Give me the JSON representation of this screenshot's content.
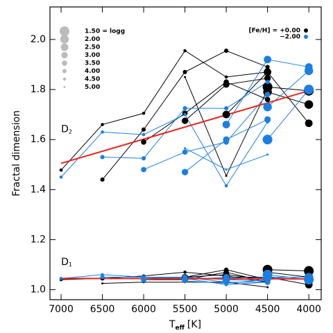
{
  "chart_data": {
    "type": "scatter",
    "x_label": [
      "T",
      "eff",
      "[K]"
    ],
    "y_label": "Fractal dimension",
    "xlim": [
      7135,
      3850
    ],
    "ylim": [
      0.96,
      2.13
    ],
    "xticks": [
      7000,
      6500,
      6000,
      5500,
      5000,
      4500,
      4000
    ],
    "yticks": [
      {
        "value": 1.0,
        "label": "1.0"
      },
      1.2,
      1.4,
      1.6,
      1.8,
      {
        "value": 2.0,
        "label": "2.0"
      }
    ],
    "annotations": [
      {
        "main": "D",
        "sub": "2",
        "x": 7000,
        "y": 1.64
      },
      {
        "main": "D",
        "sub": "1",
        "x": 7000,
        "y": 1.11
      }
    ],
    "size_legend": {
      "labels": [
        "1.50 = logg",
        "2.00",
        "2.50",
        "3.00",
        "3.50",
        "4.00",
        "4.50",
        "5.00"
      ],
      "values": [
        1.5,
        2.0,
        2.5,
        3.0,
        3.5,
        4.0,
        4.5,
        5.0
      ]
    },
    "color_legend": {
      "labels": [
        "[Fe/H] = +0.00",
        "−2.00"
      ],
      "colors": [
        "#000000",
        "#1a7fe0"
      ]
    },
    "fit_color": "#e8231e",
    "fits": [
      {
        "x": [
          7000,
          4000
        ],
        "y": [
          1.505,
          1.795
        ]
      },
      {
        "x": [
          7000,
          4000
        ],
        "y": [
          1.045,
          1.043
        ]
      }
    ],
    "tracks": [
      {
        "group": 0,
        "logg": 1.5,
        "x": [
          4500,
          4000
        ],
        "y": [
          1.81,
          1.795
        ]
      },
      {
        "group": 0,
        "logg": 2.0,
        "x": [
          4500,
          4000
        ],
        "y": [
          1.79,
          1.74
        ]
      },
      {
        "group": 0,
        "logg": 2.5,
        "x": [
          5000,
          4500,
          4000
        ],
        "y": [
          1.7,
          1.87,
          1.665
        ]
      },
      {
        "group": 0,
        "logg": 3.0,
        "x": [
          5500,
          5000,
          4500
        ],
        "y": [
          1.675,
          1.82,
          1.845
        ]
      },
      {
        "group": 0,
        "logg": 3.5,
        "x": [
          6000,
          5500,
          5000,
          4500
        ],
        "y": [
          1.59,
          1.705,
          1.83,
          1.76
        ]
      },
      {
        "group": 0,
        "logg": 4.0,
        "x": [
          6500,
          6000,
          5500,
          5000,
          4500
        ],
        "y": [
          1.44,
          1.64,
          1.87,
          1.955,
          1.89
        ]
      },
      {
        "group": 0,
        "logg": 4.5,
        "x": [
          7000,
          6500,
          6000,
          5500,
          5000,
          4500
        ],
        "y": [
          1.478,
          1.66,
          1.705,
          1.955,
          1.85,
          1.87
        ]
      },
      {
        "group": 0,
        "logg": 5.0,
        "x": [
          5500,
          5000,
          4500
        ],
        "y": [
          1.85,
          1.455,
          1.8
        ]
      },
      {
        "group": 1,
        "logg": 1.5,
        "x": [
          4500,
          4000
        ],
        "y": [
          1.6,
          1.8
        ]
      },
      {
        "group": 1,
        "logg": 2.0,
        "x": [
          4500,
          4000
        ],
        "y": [
          1.73,
          1.875
        ]
      },
      {
        "group": 1,
        "logg": 2.5,
        "x": [
          5000,
          4500,
          4000
        ],
        "y": [
          1.66,
          1.92,
          1.89
        ]
      },
      {
        "group": 1,
        "logg": 3.0,
        "x": [
          5500,
          5000,
          4500
        ],
        "y": [
          1.47,
          1.6,
          1.68
        ]
      },
      {
        "group": 1,
        "logg": 3.5,
        "x": [
          6000,
          5500,
          5000,
          4500
        ],
        "y": [
          1.48,
          1.55,
          1.59,
          1.78
        ]
      },
      {
        "group": 1,
        "logg": 4.0,
        "x": [
          6500,
          6000,
          5500,
          5000,
          4500
        ],
        "y": [
          1.53,
          1.525,
          1.725,
          1.725,
          1.83
        ]
      },
      {
        "group": 1,
        "logg": 4.5,
        "x": [
          7000,
          6500,
          6000,
          5500,
          5000,
          4500
        ],
        "y": [
          1.45,
          1.63,
          1.62,
          1.7,
          1.415,
          1.67
        ]
      },
      {
        "group": 1,
        "logg": 5.0,
        "x": [
          5500,
          5000,
          4500
        ],
        "y": [
          1.565,
          1.48,
          1.54
        ]
      },
      {
        "group": 0,
        "logg": 1.5,
        "x": [
          4500,
          4000
        ],
        "y": [
          1.08,
          1.075
        ]
      },
      {
        "group": 0,
        "logg": 2.0,
        "x": [
          4500,
          4000
        ],
        "y": [
          1.07,
          1.05
        ]
      },
      {
        "group": 0,
        "logg": 2.5,
        "x": [
          5000,
          4500,
          4000
        ],
        "y": [
          1.05,
          1.05,
          1.02
        ]
      },
      {
        "group": 0,
        "logg": 3.0,
        "x": [
          5500,
          5000,
          4500
        ],
        "y": [
          1.05,
          1.06,
          1.04
        ]
      },
      {
        "group": 0,
        "logg": 3.5,
        "x": [
          6000,
          5500,
          5000,
          4500
        ],
        "y": [
          1.04,
          1.04,
          1.07,
          1.03
        ]
      },
      {
        "group": 0,
        "logg": 4.0,
        "x": [
          6500,
          6000,
          5500,
          5000,
          4500
        ],
        "y": [
          1.045,
          1.045,
          1.05,
          1.08,
          1.04
        ]
      },
      {
        "group": 0,
        "logg": 4.5,
        "x": [
          7000,
          6500,
          6000,
          5500,
          5000,
          4500
        ],
        "y": [
          1.04,
          1.045,
          1.055,
          1.07,
          1.055,
          1.03
        ]
      },
      {
        "group": 0,
        "logg": 5.0,
        "x": [
          6500,
          6000,
          5500,
          5000,
          4500
        ],
        "y": [
          1.025,
          1.03,
          1.03,
          1.03,
          1.01
        ]
      },
      {
        "group": 1,
        "logg": 1.5,
        "x": [
          4500,
          4000
        ],
        "y": [
          1.06,
          1.04
        ]
      },
      {
        "group": 1,
        "logg": 2.0,
        "x": [
          4500,
          4000
        ],
        "y": [
          1.05,
          1.05
        ]
      },
      {
        "group": 1,
        "logg": 2.5,
        "x": [
          5000,
          4500,
          4000
        ],
        "y": [
          1.04,
          1.05,
          1.04
        ]
      },
      {
        "group": 1,
        "logg": 3.0,
        "x": [
          5500,
          5000,
          4500
        ],
        "y": [
          1.04,
          1.05,
          1.04
        ]
      },
      {
        "group": 1,
        "logg": 3.5,
        "x": [
          6000,
          5500,
          5000,
          4500
        ],
        "y": [
          1.04,
          1.05,
          1.03,
          1.03
        ]
      },
      {
        "group": 1,
        "logg": 4.0,
        "x": [
          6500,
          6000,
          5500,
          5000,
          4500
        ],
        "y": [
          1.05,
          1.05,
          1.05,
          1.04,
          1.035
        ]
      },
      {
        "group": 1,
        "logg": 4.5,
        "x": [
          7000,
          6500,
          6000,
          5500,
          5000,
          4500
        ],
        "y": [
          1.045,
          1.06,
          1.05,
          1.045,
          1.02,
          1.03
        ]
      },
      {
        "group": 1,
        "logg": 5.0,
        "x": [
          5500,
          5000,
          4500
        ],
        "y": [
          1.035,
          1.025,
          1.04
        ]
      }
    ]
  }
}
